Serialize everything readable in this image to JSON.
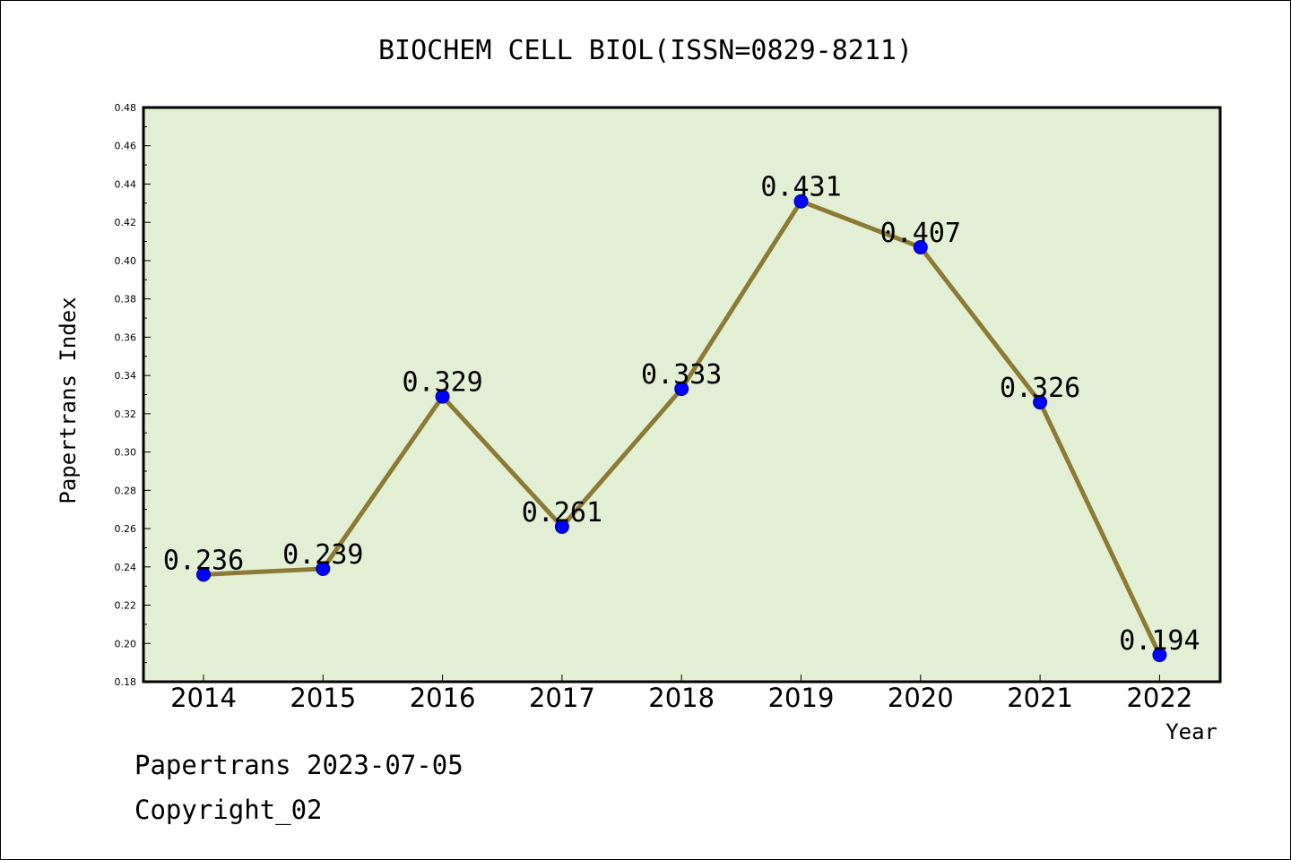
{
  "chart_data": {
    "type": "line",
    "title": "BIOCHEM CELL BIOL(ISSN=0829-8211)",
    "xlabel": "Year",
    "ylabel": "Papertrans Index",
    "categories": [
      "2014",
      "2015",
      "2016",
      "2017",
      "2018",
      "2019",
      "2020",
      "2021",
      "2022"
    ],
    "values": [
      0.236,
      0.239,
      0.329,
      0.261,
      0.333,
      0.431,
      0.407,
      0.326,
      0.194
    ],
    "data_labels": [
      "0.236",
      "0.239",
      "0.329",
      "0.261",
      "0.333",
      "0.431",
      "0.407",
      "0.326",
      "0.194"
    ],
    "ylim": [
      0.18,
      0.48
    ],
    "yticks": [
      "0.18",
      "0.20",
      "0.22",
      "0.24",
      "0.26",
      "0.28",
      "0.30",
      "0.32",
      "0.34",
      "0.36",
      "0.38",
      "0.40",
      "0.42",
      "0.44",
      "0.46",
      "0.48"
    ],
    "grid": false,
    "colors": {
      "plot_background": "#e2efd5",
      "line": "#8b7a35",
      "marker": "#0000ff"
    }
  },
  "footer": {
    "line1": "Papertrans 2023-07-05",
    "line2": "Copyright_02"
  }
}
